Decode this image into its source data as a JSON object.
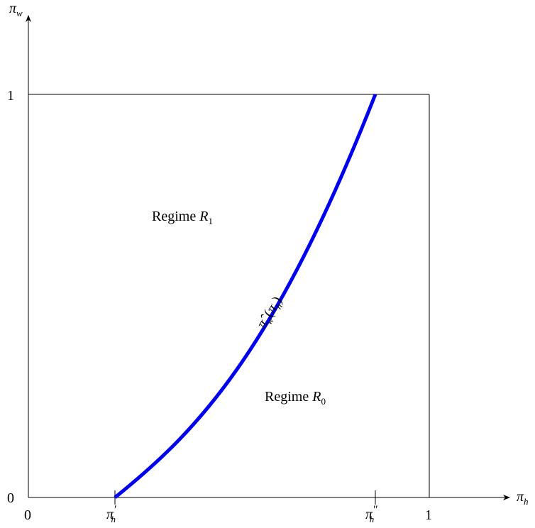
{
  "axes": {
    "x_label": "π",
    "x_label_sub": "h",
    "y_label": "π",
    "y_label_sub": "w"
  },
  "ticks": {
    "x_origin": "0",
    "y_origin": "0",
    "y_one": "1",
    "x_one": "1",
    "pi_h_prime": "π",
    "pi_h_prime_sub": "h",
    "pi_h_prime_mark": "′",
    "pi_h_dprime": "π",
    "pi_h_dprime_sub": "h",
    "pi_h_dprime_mark": "″"
  },
  "regions": {
    "r1_word": "Regime ",
    "r1_sym": "R",
    "r1_sub": "1",
    "r0_word": "Regime ",
    "r0_sym": "R",
    "r0_sub": "0"
  },
  "curve": {
    "label_hat": "π̂",
    "label_sub": "w",
    "label_open": "(",
    "label_arg": "π",
    "label_arg_sub": "h",
    "label_close": ")",
    "color": "#0000ee",
    "start": {
      "pi_h": 0.217,
      "pi_w": 0
    },
    "end": {
      "pi_h": 0.865,
      "pi_w": 1
    }
  }
}
